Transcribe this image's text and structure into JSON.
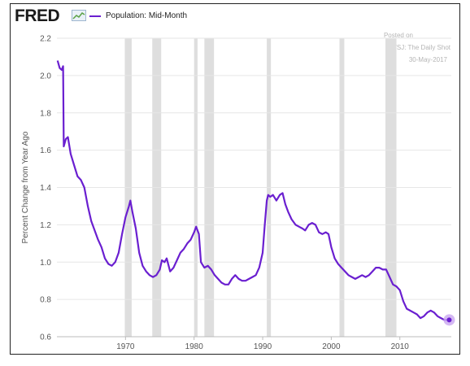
{
  "logo": {
    "text": "FRED",
    "icon": "fred-graph-icon"
  },
  "legend": {
    "label": "Population: Mid-Month",
    "color": "#6a1fd0"
  },
  "annotation": {
    "line1": "Posted on",
    "line2": "WSJ: The Daily Shot",
    "line3": "30-May-2017"
  },
  "colors": {
    "line": "#6a1fd0",
    "recession": "#dedede",
    "grid": "#e6e6e6",
    "marker": "#c9a6f0"
  },
  "chart_data": {
    "type": "line",
    "ylabel": "Percent Change from Year Ago",
    "xlim": [
      1960,
      2017.5
    ],
    "ylim": [
      0.6,
      2.2
    ],
    "yticks": [
      "0.6",
      "0.8",
      "1.0",
      "1.2",
      "1.4",
      "1.6",
      "1.8",
      "2.0",
      "2.2"
    ],
    "xticks": [
      "1970",
      "1980",
      "1990",
      "2000",
      "2010"
    ],
    "recessions": [
      [
        1969.9,
        1970.9
      ],
      [
        1973.9,
        1975.2
      ],
      [
        1980.0,
        1980.5
      ],
      [
        1981.5,
        1982.9
      ],
      [
        1990.6,
        1991.2
      ],
      [
        2001.2,
        2001.9
      ],
      [
        2007.9,
        2009.5
      ]
    ],
    "series": [
      {
        "points": [
          [
            1960.1,
            2.08
          ],
          [
            1960.4,
            2.04
          ],
          [
            1960.7,
            2.03
          ],
          [
            1960.9,
            2.05
          ],
          [
            1961.0,
            1.62
          ],
          [
            1961.3,
            1.66
          ],
          [
            1961.6,
            1.67
          ],
          [
            1962.0,
            1.58
          ],
          [
            1962.5,
            1.52
          ],
          [
            1963.0,
            1.46
          ],
          [
            1963.5,
            1.44
          ],
          [
            1964.0,
            1.4
          ],
          [
            1964.5,
            1.3
          ],
          [
            1965.0,
            1.22
          ],
          [
            1965.5,
            1.17
          ],
          [
            1966.0,
            1.12
          ],
          [
            1966.5,
            1.08
          ],
          [
            1967.0,
            1.02
          ],
          [
            1967.5,
            0.99
          ],
          [
            1968.0,
            0.98
          ],
          [
            1968.5,
            1.0
          ],
          [
            1969.0,
            1.05
          ],
          [
            1969.5,
            1.15
          ],
          [
            1970.0,
            1.24
          ],
          [
            1970.5,
            1.3
          ],
          [
            1970.7,
            1.33
          ],
          [
            1971.0,
            1.27
          ],
          [
            1971.5,
            1.18
          ],
          [
            1972.0,
            1.05
          ],
          [
            1972.5,
            0.98
          ],
          [
            1973.0,
            0.95
          ],
          [
            1973.5,
            0.93
          ],
          [
            1974.0,
            0.92
          ],
          [
            1974.5,
            0.93
          ],
          [
            1975.0,
            0.96
          ],
          [
            1975.3,
            1.01
          ],
          [
            1975.7,
            1.0
          ],
          [
            1976.0,
            1.02
          ],
          [
            1976.5,
            0.95
          ],
          [
            1977.0,
            0.97
          ],
          [
            1977.5,
            1.01
          ],
          [
            1978.0,
            1.05
          ],
          [
            1978.5,
            1.07
          ],
          [
            1979.0,
            1.1
          ],
          [
            1979.5,
            1.12
          ],
          [
            1980.0,
            1.16
          ],
          [
            1980.3,
            1.19
          ],
          [
            1980.7,
            1.15
          ],
          [
            1981.0,
            1.0
          ],
          [
            1981.5,
            0.97
          ],
          [
            1982.0,
            0.98
          ],
          [
            1982.5,
            0.96
          ],
          [
            1983.0,
            0.93
          ],
          [
            1983.5,
            0.91
          ],
          [
            1984.0,
            0.89
          ],
          [
            1984.5,
            0.88
          ],
          [
            1985.0,
            0.88
          ],
          [
            1985.5,
            0.91
          ],
          [
            1986.0,
            0.93
          ],
          [
            1986.5,
            0.91
          ],
          [
            1987.0,
            0.9
          ],
          [
            1987.5,
            0.9
          ],
          [
            1988.0,
            0.91
          ],
          [
            1988.5,
            0.92
          ],
          [
            1989.0,
            0.93
          ],
          [
            1989.5,
            0.97
          ],
          [
            1990.0,
            1.05
          ],
          [
            1990.3,
            1.2
          ],
          [
            1990.6,
            1.33
          ],
          [
            1990.8,
            1.36
          ],
          [
            1991.1,
            1.35
          ],
          [
            1991.5,
            1.36
          ],
          [
            1992.0,
            1.33
          ],
          [
            1992.5,
            1.36
          ],
          [
            1992.9,
            1.37
          ],
          [
            1993.3,
            1.31
          ],
          [
            1993.7,
            1.27
          ],
          [
            1994.2,
            1.23
          ],
          [
            1994.8,
            1.2
          ],
          [
            1995.3,
            1.19
          ],
          [
            1995.8,
            1.18
          ],
          [
            1996.2,
            1.17
          ],
          [
            1996.7,
            1.2
          ],
          [
            1997.2,
            1.21
          ],
          [
            1997.7,
            1.2
          ],
          [
            1998.2,
            1.16
          ],
          [
            1998.7,
            1.15
          ],
          [
            1999.2,
            1.16
          ],
          [
            1999.6,
            1.15
          ],
          [
            2000.0,
            1.08
          ],
          [
            2000.5,
            1.02
          ],
          [
            2001.0,
            0.99
          ],
          [
            2001.5,
            0.97
          ],
          [
            2002.0,
            0.95
          ],
          [
            2002.5,
            0.93
          ],
          [
            2003.0,
            0.92
          ],
          [
            2003.5,
            0.91
          ],
          [
            2004.0,
            0.92
          ],
          [
            2004.5,
            0.93
          ],
          [
            2005.0,
            0.92
          ],
          [
            2005.5,
            0.93
          ],
          [
            2006.0,
            0.95
          ],
          [
            2006.5,
            0.97
          ],
          [
            2007.0,
            0.97
          ],
          [
            2007.5,
            0.96
          ],
          [
            2008.0,
            0.96
          ],
          [
            2008.5,
            0.92
          ],
          [
            2009.0,
            0.88
          ],
          [
            2009.5,
            0.87
          ],
          [
            2010.0,
            0.85
          ],
          [
            2010.5,
            0.79
          ],
          [
            2011.0,
            0.75
          ],
          [
            2011.5,
            0.74
          ],
          [
            2012.0,
            0.73
          ],
          [
            2012.5,
            0.72
          ],
          [
            2013.0,
            0.7
          ],
          [
            2013.5,
            0.71
          ],
          [
            2014.0,
            0.73
          ],
          [
            2014.5,
            0.74
          ],
          [
            2015.0,
            0.73
          ],
          [
            2015.5,
            0.71
          ],
          [
            2016.0,
            0.7
          ],
          [
            2016.5,
            0.69
          ],
          [
            2017.2,
            0.69
          ]
        ]
      }
    ]
  }
}
